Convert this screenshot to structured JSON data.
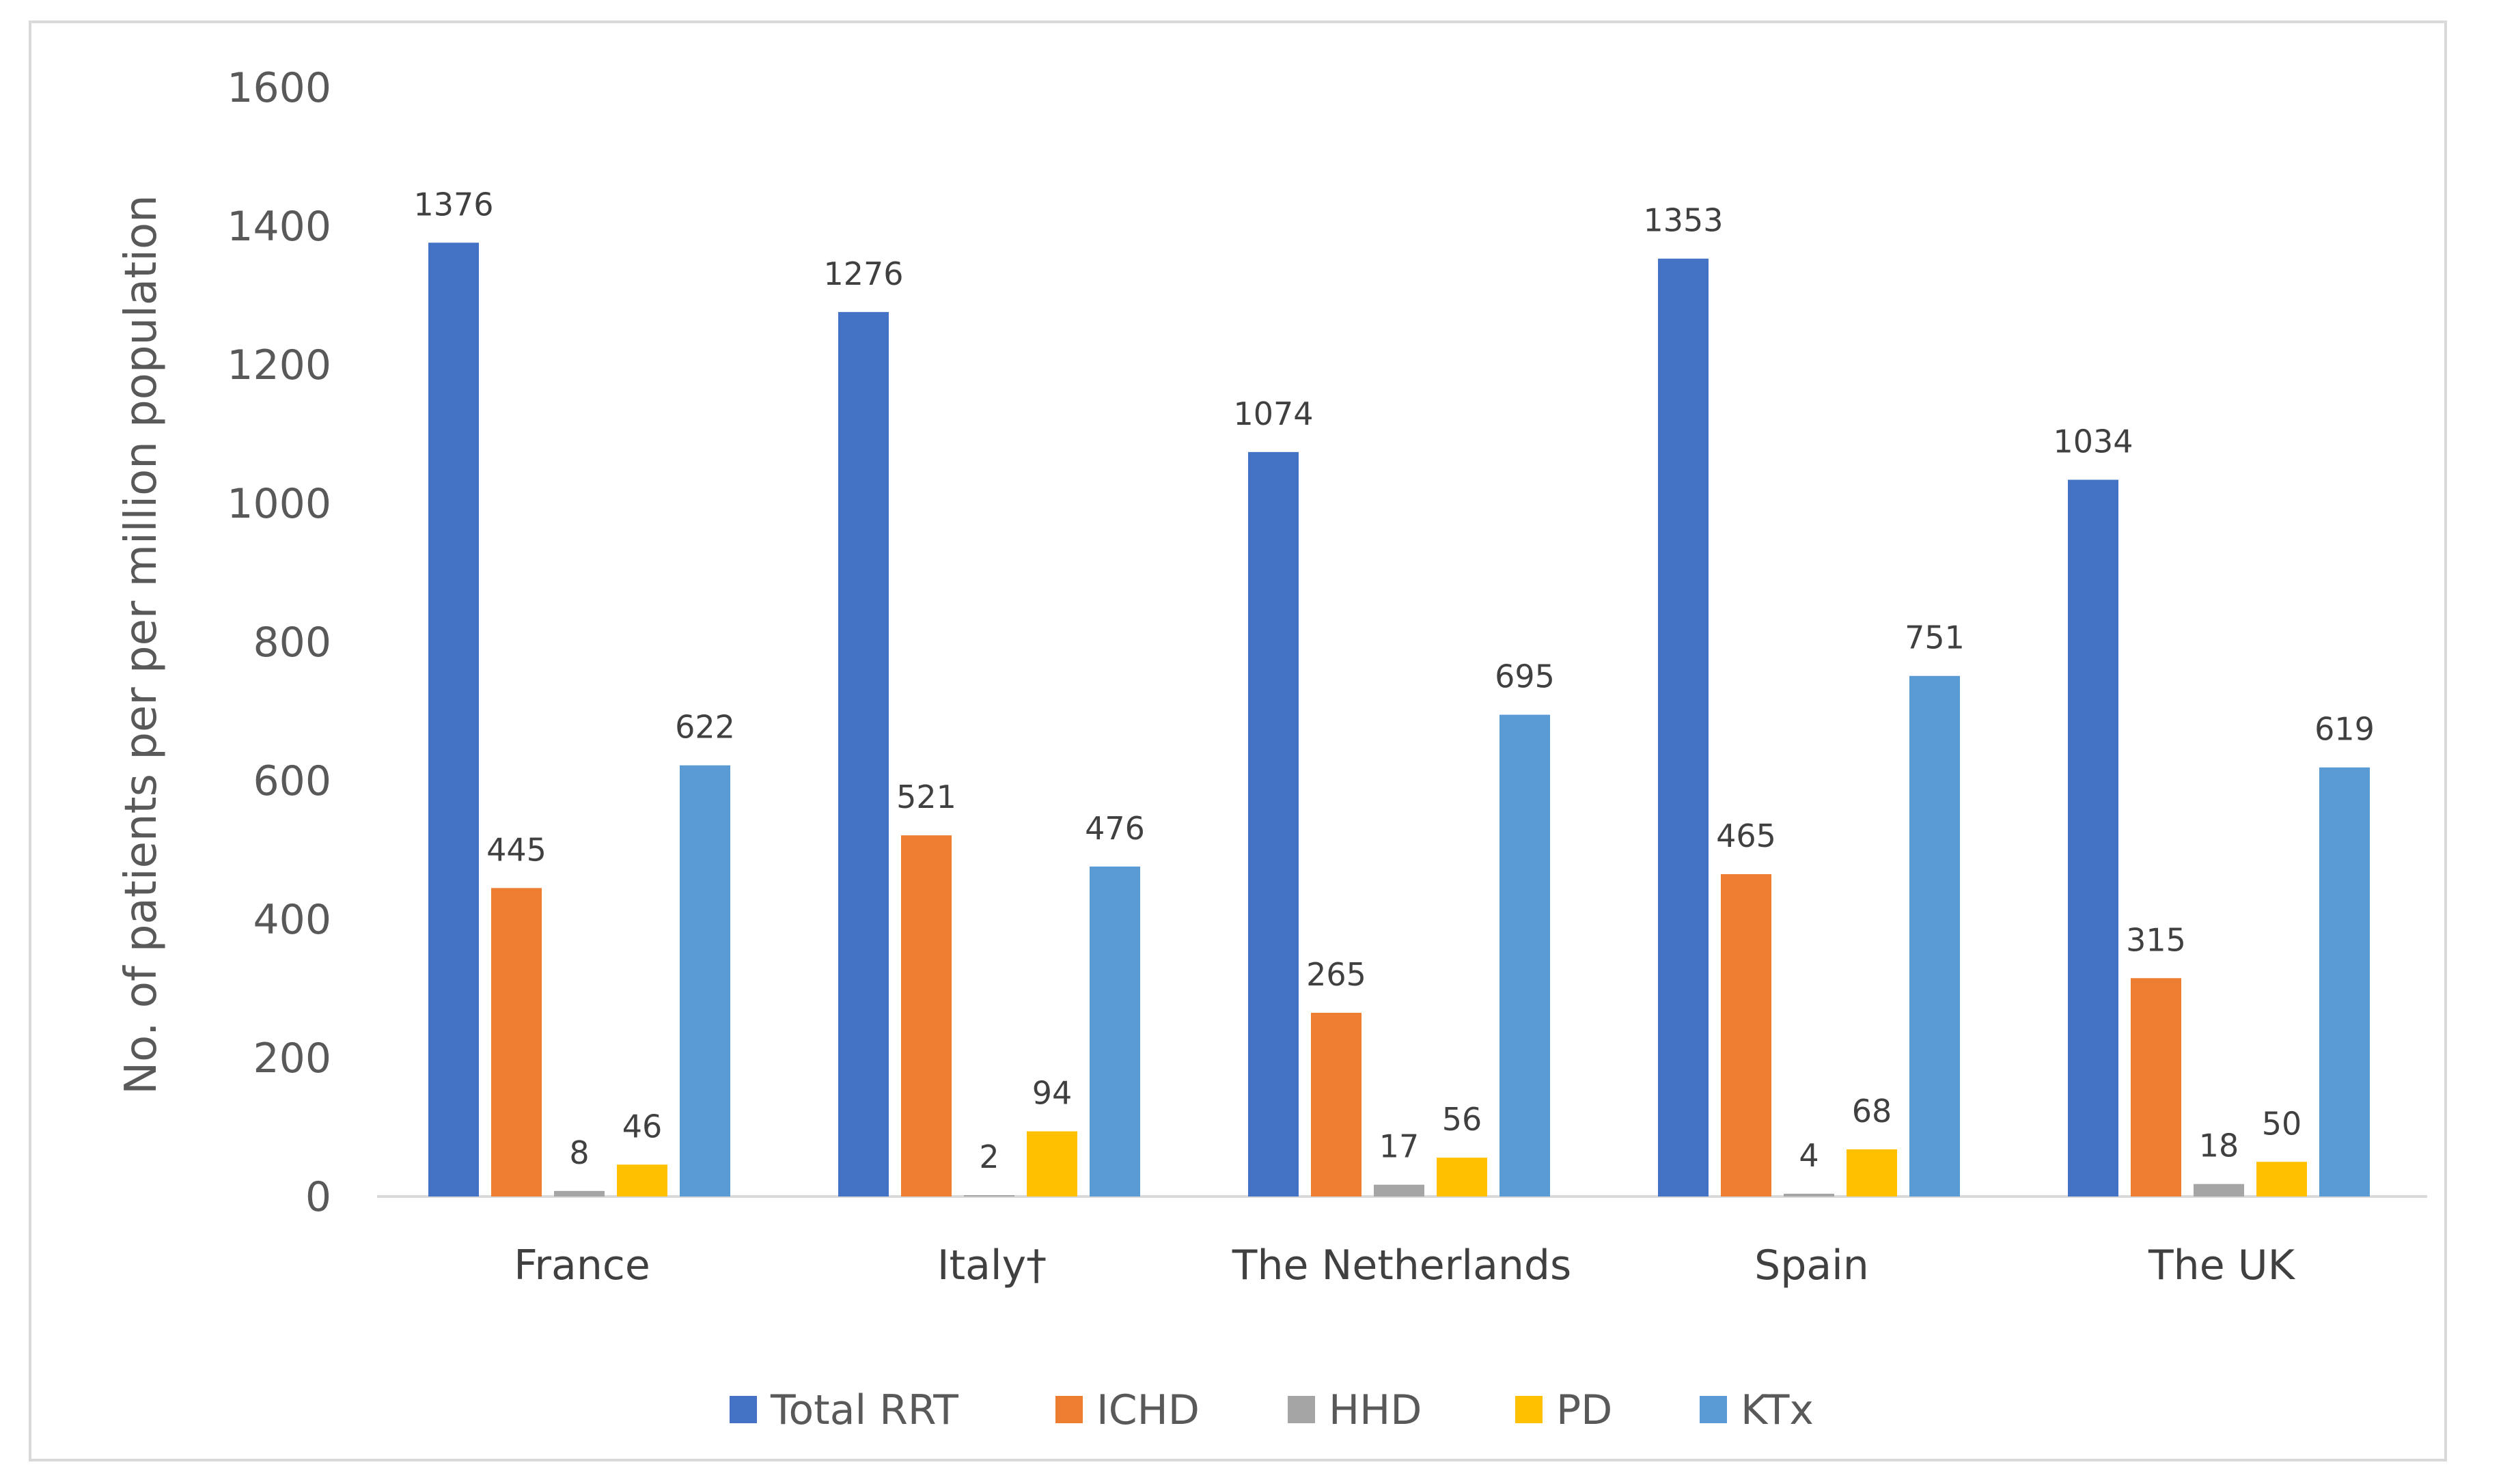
{
  "chart_data": {
    "type": "bar",
    "title": "",
    "xlabel": "",
    "ylabel": "No. of patients per per million population",
    "ylim": [
      0,
      1600
    ],
    "yticks": [
      0,
      200,
      400,
      600,
      800,
      1000,
      1200,
      1400,
      1600
    ],
    "grid": false,
    "legend_position": "bottom",
    "categories": [
      "France",
      "Italy†",
      "The Netherlands",
      "Spain",
      "The UK"
    ],
    "series": [
      {
        "name": "Total RRT",
        "color": "#4472C4",
        "values": [
          1376,
          1276,
          1074,
          1353,
          1034
        ]
      },
      {
        "name": "ICHD",
        "color": "#ED7D31",
        "values": [
          445,
          521,
          265,
          465,
          315
        ]
      },
      {
        "name": "HHD",
        "color": "#A5A5A5",
        "values": [
          8,
          2,
          17,
          4,
          18
        ]
      },
      {
        "name": "PD",
        "color": "#FFC000",
        "values": [
          46,
          94,
          56,
          68,
          50
        ]
      },
      {
        "name": "KTx",
        "color": "#5B9BD5",
        "values": [
          622,
          476,
          695,
          751,
          619
        ]
      }
    ]
  }
}
